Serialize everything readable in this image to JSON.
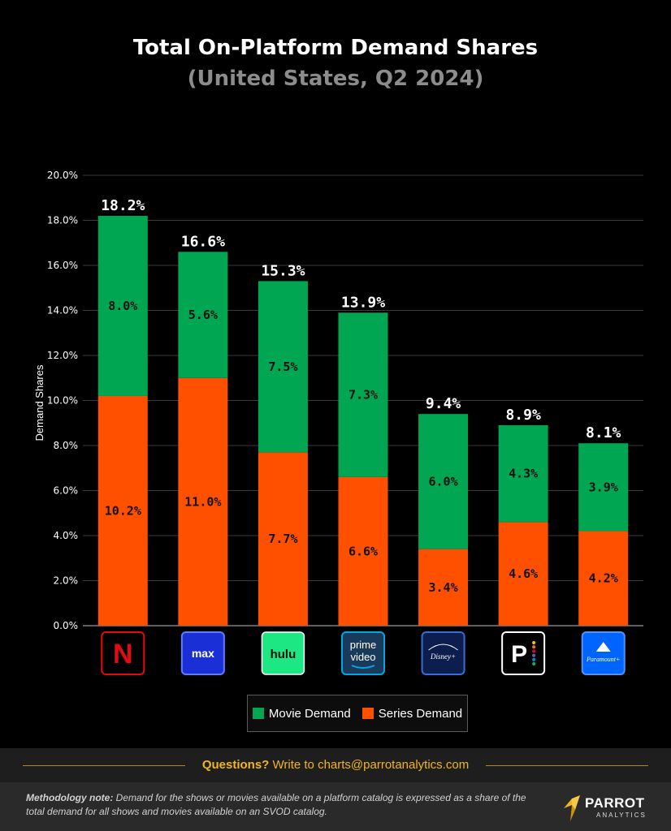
{
  "title": "Total On-Platform Demand Shares",
  "subtitle": "(United States, Q2 2024)",
  "colors": {
    "movie": "#00a651",
    "series": "#ff5000",
    "background": "#000000",
    "accent": "#f2b51d"
  },
  "chart_data": {
    "type": "bar",
    "stacked": true,
    "categories": [
      "Netflix",
      "Max",
      "Hulu",
      "Prime Video",
      "Disney+",
      "Peacock",
      "Paramount+"
    ],
    "category_icons": [
      "netflix-logo",
      "max-logo",
      "hulu-logo",
      "prime-video-logo",
      "disney-plus-logo",
      "peacock-logo",
      "paramount-plus-logo"
    ],
    "series": [
      {
        "name": "Series Demand",
        "values": [
          10.2,
          11.0,
          7.7,
          6.6,
          3.4,
          4.6,
          4.2
        ],
        "labels": [
          "10.2%",
          "11.0%",
          "7.7%",
          "6.6%",
          "3.4%",
          "4.6%",
          "4.2%"
        ]
      },
      {
        "name": "Movie Demand",
        "values": [
          8.0,
          5.6,
          7.5,
          7.3,
          6.0,
          4.3,
          3.9
        ],
        "labels": [
          "8.0%",
          "5.6%",
          "7.5%",
          "7.3%",
          "6.0%",
          "4.3%",
          "3.9%"
        ]
      }
    ],
    "totals": [
      18.2,
      16.6,
      15.3,
      13.9,
      9.4,
      8.9,
      8.1
    ],
    "total_labels": [
      "18.2%",
      "16.6%",
      "15.3%",
      "13.9%",
      "9.4%",
      "8.9%",
      "8.1%"
    ],
    "ylabel": "Demand Shares",
    "ylim": [
      0,
      20
    ],
    "yticks": [
      "0.0%",
      "2.0%",
      "4.0%",
      "6.0%",
      "8.0%",
      "10.0%",
      "12.0%",
      "14.0%",
      "16.0%",
      "18.0%",
      "20.0%"
    ],
    "grid": true,
    "legend_position": "bottom-center"
  },
  "legend": {
    "movie_label": "Movie Demand",
    "series_label": "Series Demand"
  },
  "footer": {
    "questions_label": "Questions?",
    "questions_text": " Write to charts@parrotanalytics.com"
  },
  "methodology": {
    "label": "Methodology note:",
    "text": " Demand for the shows or movies available on a platform catalog is expressed as a share of the total demand for all shows and movies available on an SVOD catalog."
  },
  "brand": {
    "name": "PARROT",
    "sub": "ANALYTICS"
  },
  "logo_text": {
    "netflix": "N",
    "max": "max",
    "hulu": "hulu",
    "prime_top": "prime",
    "prime_bottom": "video",
    "disney": "Disney+",
    "peacock": "P",
    "paramount": "Paramount+"
  }
}
